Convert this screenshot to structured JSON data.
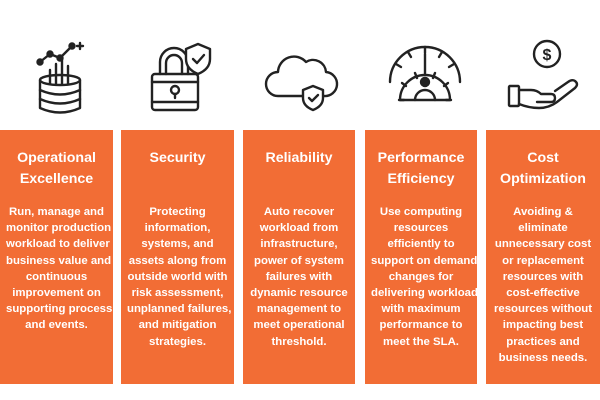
{
  "icons": [
    "database-chart-icon",
    "padlock-shield-icon",
    "cloud-shield-icon",
    "gauge-gear-icon",
    "hand-coin-icon"
  ],
  "columns": [
    {
      "id": "operational-excellence",
      "title_lines": [
        "Operational",
        "Excellence"
      ],
      "body_lines": [
        "Run, manage and",
        "monitor production",
        "workload to deliver",
        "business value and",
        "continuous",
        "improvement on",
        "supporting process",
        "and events."
      ]
    },
    {
      "id": "security",
      "title_lines": [
        "Security"
      ],
      "body_lines": [
        "Protecting",
        "information,",
        "systems, and",
        "assets along from",
        "outside world with",
        "risk assessment,",
        "unplanned failures,",
        "and mitigation",
        "strategies."
      ]
    },
    {
      "id": "reliability",
      "title_lines": [
        "Reliability"
      ],
      "body_lines": [
        "Auto recover",
        "workload from",
        "infrastructure,",
        "power of system",
        "failures with",
        "dynamic resource",
        "management to",
        "meet operational",
        "threshold."
      ]
    },
    {
      "id": "performance-efficiency",
      "title_lines": [
        "Performance",
        "Efficiency"
      ],
      "body_lines": [
        "Use computing",
        "resources",
        "efficiently to",
        "support on demand",
        "changes for",
        "delivering workload",
        "with maximum",
        "performance to",
        "meet the SLA."
      ]
    },
    {
      "id": "cost-optimization",
      "title_lines": [
        "Cost",
        "Optimization"
      ],
      "body_lines": [
        "Avoiding &",
        "eliminate",
        "unnecessary cost",
        "or replacement",
        "resources with",
        "cost-effective",
        "resources without",
        "impacting best",
        "practices and",
        "business needs."
      ]
    }
  ],
  "colors": {
    "column_bg": "#f26d35",
    "text": "#ffffff",
    "icon_stroke": "#222222",
    "background": "#ffffff"
  }
}
